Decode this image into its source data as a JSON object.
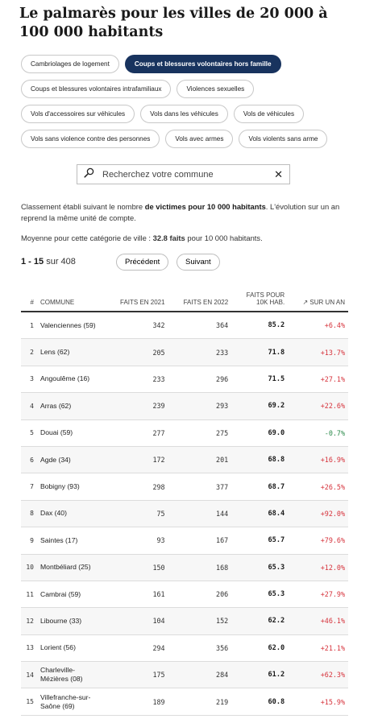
{
  "page": {
    "title": "Le palmarès pour les villes de 20 000 à 100 000 habitants"
  },
  "filters": {
    "rows": [
      [
        {
          "label": "Cambriolages de logement",
          "active": false
        },
        {
          "label": "Coups et blessures volontaires hors famille",
          "active": true
        }
      ],
      [
        {
          "label": "Coups et blessures volontaires intrafamiliaux",
          "active": false
        },
        {
          "label": "Violences sexuelles",
          "active": false
        }
      ],
      [
        {
          "label": "Vols d'accessoires sur véhicules",
          "active": false
        },
        {
          "label": "Vols dans les véhicules",
          "active": false
        },
        {
          "label": "Vols de véhicules",
          "active": false
        }
      ],
      [
        {
          "label": "Vols sans violence contre des personnes",
          "active": false
        },
        {
          "label": "Vols avec armes",
          "active": false
        },
        {
          "label": "Vols violents sans arme",
          "active": false
        }
      ]
    ]
  },
  "search": {
    "placeholder": "Recherchez votre commune",
    "value": "",
    "icon": "magnifier-icon",
    "clear_icon": "close-icon"
  },
  "description": {
    "part1": "Classement établi suivant le nombre ",
    "bold": "de victimes pour 10 000 habitants",
    "part2": ". L'évolution sur un an reprend la même unité de compte."
  },
  "average": {
    "prefix": "Moyenne pour cette catégorie de ville : ",
    "value": "32.8 faits",
    "suffix": " pour 10 000 habitants."
  },
  "pager": {
    "range": "1 - 15",
    "of": " sur 408",
    "prev_label": "Précédent",
    "next_label": "Suivant"
  },
  "table": {
    "headers": {
      "rank": "#",
      "commune": "COMMUNE",
      "y2021": "FAITS EN 2021",
      "y2022": "FAITS EN 2022",
      "rate": "FAITS POUR 10K HAB.",
      "change": "↗ SUR UN AN"
    },
    "rows": [
      {
        "rank": "1",
        "commune": "Valenciennes (59)",
        "y2021": "342",
        "y2022": "364",
        "rate": "85.2",
        "change": "+6.4%",
        "dir": "up"
      },
      {
        "rank": "2",
        "commune": "Lens (62)",
        "y2021": "205",
        "y2022": "233",
        "rate": "71.8",
        "change": "+13.7%",
        "dir": "up"
      },
      {
        "rank": "3",
        "commune": "Angoulême (16)",
        "y2021": "233",
        "y2022": "296",
        "rate": "71.5",
        "change": "+27.1%",
        "dir": "up"
      },
      {
        "rank": "4",
        "commune": "Arras (62)",
        "y2021": "239",
        "y2022": "293",
        "rate": "69.2",
        "change": "+22.6%",
        "dir": "up"
      },
      {
        "rank": "5",
        "commune": "Douai (59)",
        "y2021": "277",
        "y2022": "275",
        "rate": "69.0",
        "change": "-0.7%",
        "dir": "down"
      },
      {
        "rank": "6",
        "commune": "Agde (34)",
        "y2021": "172",
        "y2022": "201",
        "rate": "68.8",
        "change": "+16.9%",
        "dir": "up"
      },
      {
        "rank": "7",
        "commune": "Bobigny (93)",
        "y2021": "298",
        "y2022": "377",
        "rate": "68.7",
        "change": "+26.5%",
        "dir": "up"
      },
      {
        "rank": "8",
        "commune": "Dax (40)",
        "y2021": "75",
        "y2022": "144",
        "rate": "68.4",
        "change": "+92.0%",
        "dir": "up"
      },
      {
        "rank": "9",
        "commune": "Saintes (17)",
        "y2021": "93",
        "y2022": "167",
        "rate": "65.7",
        "change": "+79.6%",
        "dir": "up"
      },
      {
        "rank": "10",
        "commune": "Montbéliard (25)",
        "y2021": "150",
        "y2022": "168",
        "rate": "65.3",
        "change": "+12.0%",
        "dir": "up"
      },
      {
        "rank": "11",
        "commune": "Cambrai (59)",
        "y2021": "161",
        "y2022": "206",
        "rate": "65.3",
        "change": "+27.9%",
        "dir": "up"
      },
      {
        "rank": "12",
        "commune": "Libourne (33)",
        "y2021": "104",
        "y2022": "152",
        "rate": "62.2",
        "change": "+46.1%",
        "dir": "up"
      },
      {
        "rank": "13",
        "commune": "Lorient (56)",
        "y2021": "294",
        "y2022": "356",
        "rate": "62.0",
        "change": "+21.1%",
        "dir": "up"
      },
      {
        "rank": "14",
        "commune": "Charleville-Mézières (08)",
        "y2021": "175",
        "y2022": "284",
        "rate": "61.2",
        "change": "+62.3%",
        "dir": "up"
      },
      {
        "rank": "15",
        "commune": "Villefranche-sur-Saône (69)",
        "y2021": "189",
        "y2022": "219",
        "rate": "60.8",
        "change": "+15.9%",
        "dir": "up"
      }
    ]
  },
  "colors": {
    "active_chip": "#18335e",
    "positive_change": "#d6323b",
    "negative_change": "#2a8a4a"
  }
}
